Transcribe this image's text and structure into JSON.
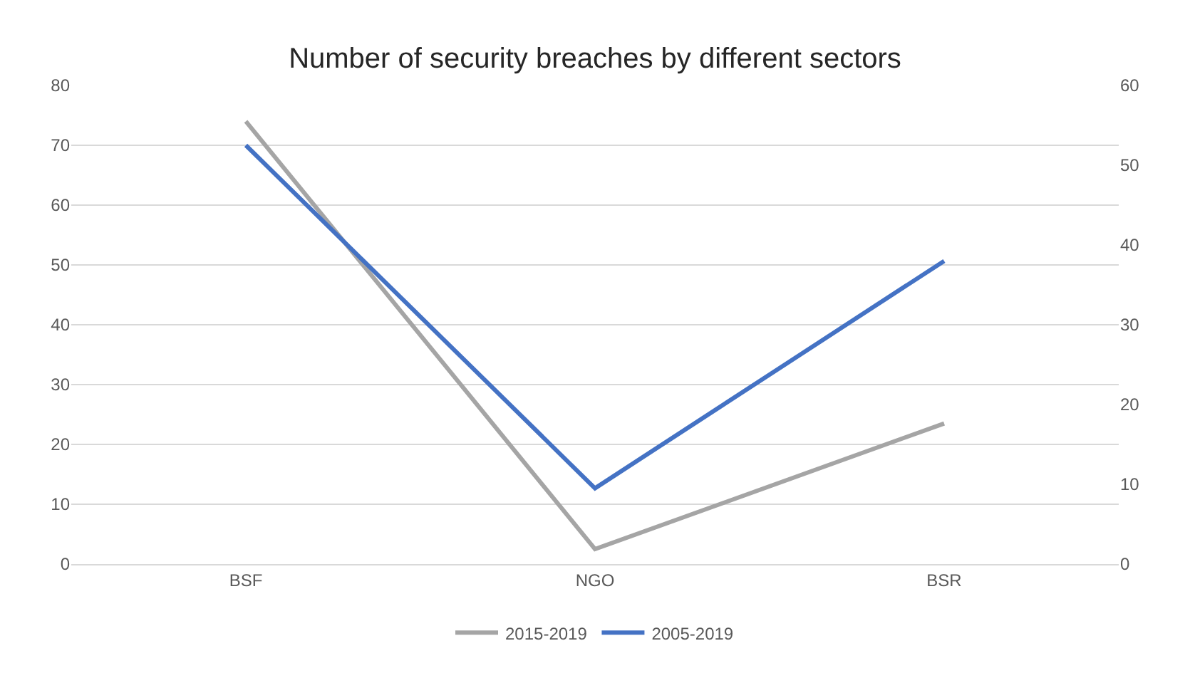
{
  "chart_data": {
    "type": "line",
    "title": "Number of security breaches by different sectors",
    "categories": [
      "BSF",
      "NGO",
      "BSR"
    ],
    "series": [
      {
        "name": "2015-2019",
        "color": "#a5a5a5",
        "values": [
          74,
          2.5,
          23.5
        ]
      },
      {
        "name": "2005-2019",
        "color": "#4472c4",
        "values": [
          52.5,
          9.5,
          38
        ],
        "axis": "y2"
      }
    ],
    "ylim": [
      0,
      80
    ],
    "yticks": [
      0,
      10,
      20,
      30,
      40,
      50,
      60,
      70,
      80
    ],
    "y2lim": [
      0,
      60
    ],
    "y2ticks": [
      0,
      10,
      20,
      30,
      40,
      50,
      60
    ],
    "grid": "y",
    "legend": "bottom",
    "marker": "none",
    "line_style": "solid"
  }
}
